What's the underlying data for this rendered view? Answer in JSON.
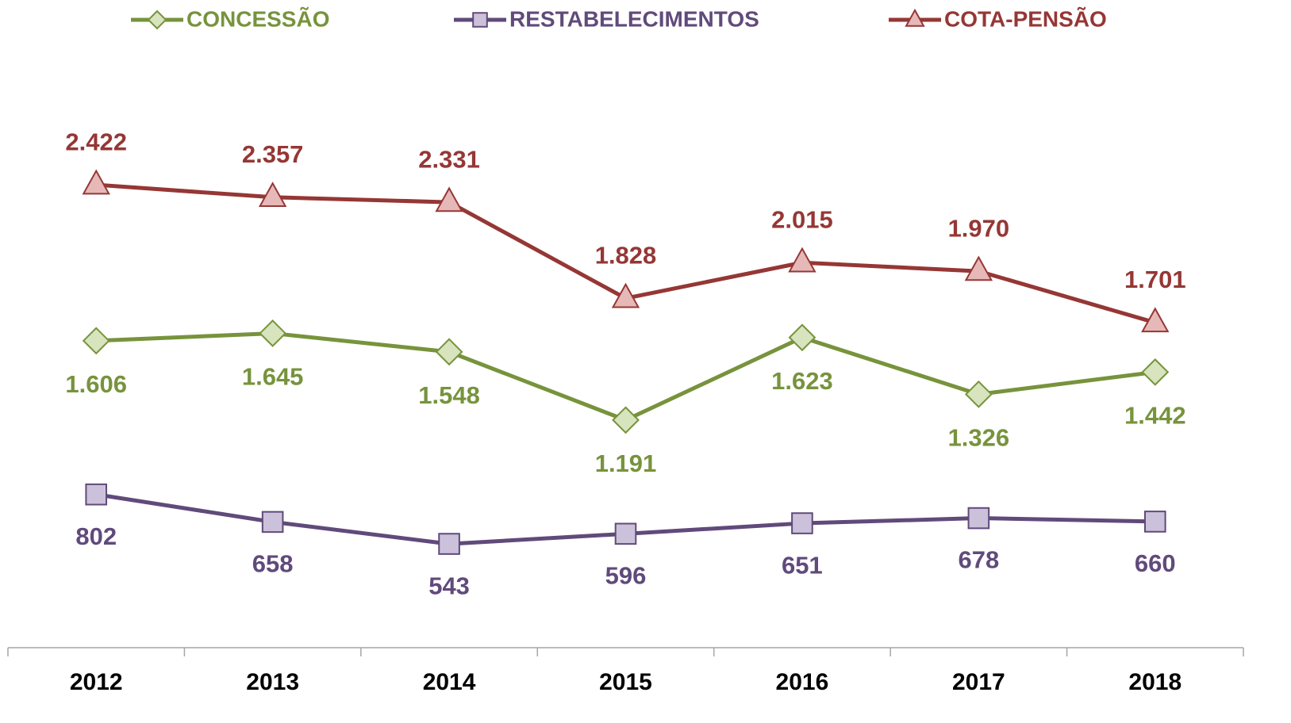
{
  "chart_data": {
    "type": "line",
    "categories": [
      "2012",
      "2013",
      "2014",
      "2015",
      "2016",
      "2017",
      "2018"
    ],
    "series": [
      {
        "name": "CONCESSÃO",
        "color": "#77933c",
        "marker": "diamond",
        "marker_fill": "#d7e4bd",
        "values": [
          1606,
          1645,
          1548,
          1191,
          1623,
          1326,
          1442
        ],
        "value_labels": [
          "1.606",
          "1.645",
          "1.548",
          "1.191",
          "1.623",
          "1.326",
          "1.442"
        ]
      },
      {
        "name": "RESTABELECIMENTOS",
        "color": "#604a7b",
        "marker": "square",
        "marker_fill": "#ccc1da",
        "values": [
          802,
          658,
          543,
          596,
          651,
          678,
          660
        ],
        "value_labels": [
          "802",
          "658",
          "543",
          "596",
          "651",
          "678",
          "660"
        ]
      },
      {
        "name": "COTA-PENSÃO",
        "color": "#953735",
        "marker": "triangle",
        "marker_fill": "#e6b9b8",
        "values": [
          2422,
          2357,
          2331,
          1828,
          2015,
          1970,
          1701
        ],
        "value_labels": [
          "2.422",
          "2.357",
          "2.331",
          "1.828",
          "2.015",
          "1.970",
          "1.701"
        ]
      }
    ],
    "ylim": [
      0,
      3000
    ],
    "legend": "top"
  }
}
